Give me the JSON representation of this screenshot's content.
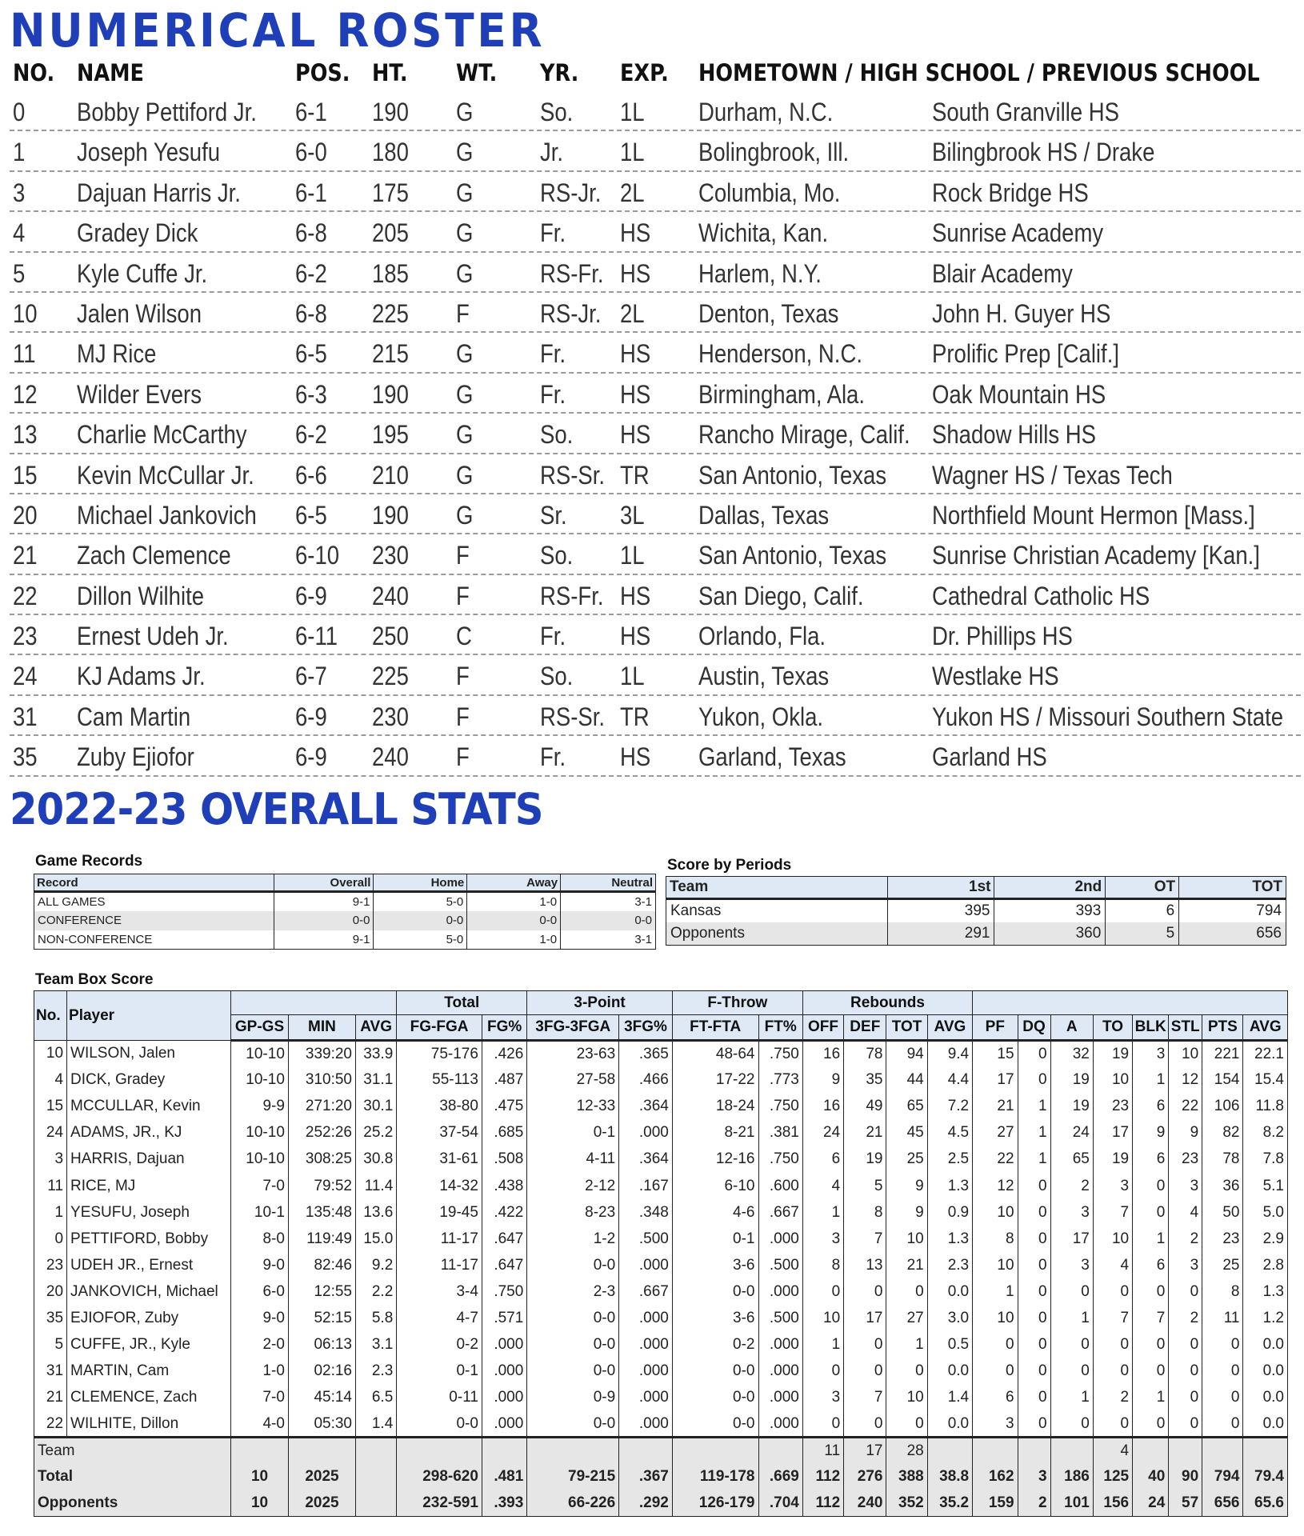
{
  "titles": {
    "roster": "NUMERICAL ROSTER",
    "stats": "2022-23 OVERALL STATS"
  },
  "colors": {
    "heading": "#1f3fb8",
    "header_fill": "#dfe8f5",
    "stripe": "#e6e6e6"
  },
  "roster": {
    "headers": [
      "NO.",
      "NAME",
      "POS.",
      "HT.",
      "WT.",
      "YR.",
      "EXP.",
      "HOMETOWN / HIGH SCHOOL / PREVIOUS SCHOOL"
    ],
    "players": [
      [
        "0",
        "Bobby Pettiford Jr.",
        "6-1",
        "190",
        "G",
        "So.",
        "1L",
        "Durham, N.C.",
        "South Granville HS"
      ],
      [
        "1",
        "Joseph Yesufu",
        "6-0",
        "180",
        "G",
        "Jr.",
        "1L",
        "Bolingbrook, Ill.",
        "Bilingbrook HS / Drake"
      ],
      [
        "3",
        "Dajuan Harris Jr.",
        "6-1",
        "175",
        "G",
        "RS-Jr.",
        "2L",
        "Columbia, Mo.",
        "Rock Bridge HS"
      ],
      [
        "4",
        "Gradey Dick",
        "6-8",
        "205",
        "G",
        "Fr.",
        "HS",
        "Wichita, Kan.",
        "Sunrise Academy"
      ],
      [
        "5",
        "Kyle Cuffe Jr.",
        "6-2",
        "185",
        "G",
        "RS-Fr.",
        "HS",
        "Harlem, N.Y.",
        "Blair Academy"
      ],
      [
        "10",
        "Jalen Wilson",
        "6-8",
        "225",
        "F",
        "RS-Jr.",
        "2L",
        "Denton, Texas",
        "John H. Guyer HS"
      ],
      [
        "11",
        "MJ Rice",
        "6-5",
        "215",
        "G",
        "Fr.",
        "HS",
        "Henderson, N.C.",
        "Prolific Prep [Calif.]"
      ],
      [
        "12",
        "Wilder Evers",
        "6-3",
        "190",
        "G",
        "Fr.",
        "HS",
        "Birmingham, Ala.",
        "Oak Mountain HS"
      ],
      [
        "13",
        "Charlie McCarthy",
        "6-2",
        "195",
        "G",
        "So.",
        "HS",
        "Rancho Mirage, Calif.",
        "Shadow Hills HS"
      ],
      [
        "15",
        "Kevin McCullar Jr.",
        "6-6",
        "210",
        "G",
        "RS-Sr.",
        "TR",
        "San Antonio, Texas",
        "Wagner HS / Texas Tech"
      ],
      [
        "20",
        "Michael Jankovich",
        "6-5",
        "190",
        "G",
        "Sr.",
        "3L",
        "Dallas, Texas",
        "Northfield Mount Hermon [Mass.]"
      ],
      [
        "21",
        "Zach Clemence",
        "6-10",
        "230",
        "F",
        "So.",
        "1L",
        "San Antonio, Texas",
        "Sunrise Christian Academy [Kan.]"
      ],
      [
        "22",
        "Dillon Wilhite",
        "6-9",
        "240",
        "F",
        "RS-Fr.",
        "HS",
        "San Diego, Calif.",
        "Cathedral Catholic HS"
      ],
      [
        "23",
        "Ernest Udeh Jr.",
        "6-11",
        "250",
        "C",
        "Fr.",
        "HS",
        "Orlando, Fla.",
        "Dr. Phillips HS"
      ],
      [
        "24",
        "KJ Adams Jr.",
        "6-7",
        "225",
        "F",
        "So.",
        "1L",
        "Austin, Texas",
        "Westlake HS"
      ],
      [
        "31",
        "Cam Martin",
        "6-9",
        "230",
        "F",
        "RS-Sr.",
        "TR",
        "Yukon, Okla.",
        "Yukon HS / Missouri Southern State"
      ],
      [
        "35",
        "Zuby Ejiofor",
        "6-9",
        "240",
        "F",
        "Fr.",
        "HS",
        "Garland, Texas",
        "Garland HS"
      ]
    ]
  },
  "game_records": {
    "label": "Game Records",
    "headers": [
      "Record",
      "Overall",
      "Home",
      "Away",
      "Neutral"
    ],
    "rows": [
      [
        "ALL GAMES",
        "9-1",
        "5-0",
        "1-0",
        "3-1"
      ],
      [
        "CONFERENCE",
        "0-0",
        "0-0",
        "0-0",
        "0-0"
      ],
      [
        "NON-CONFERENCE",
        "9-1",
        "5-0",
        "1-0",
        "3-1"
      ]
    ]
  },
  "score_by_periods": {
    "label": "Score by Periods",
    "headers": [
      "Team",
      "1st",
      "2nd",
      "OT",
      "TOT"
    ],
    "rows": [
      [
        "Kansas",
        "395",
        "393",
        "6",
        "794"
      ],
      [
        "Opponents",
        "291",
        "360",
        "5",
        "656"
      ]
    ]
  },
  "box_score": {
    "label": "Team Box Score",
    "group_headers": {
      "no": "No.",
      "player": "Player",
      "total": "Total",
      "three": "3-Point",
      "ft": "F-Throw",
      "reb": "Rebounds"
    },
    "col_headers": [
      "GP-GS",
      "MIN",
      "AVG",
      "FG-FGA",
      "FG%",
      "3FG-3FGA",
      "3FG%",
      "FT-FTA",
      "FT%",
      "OFF",
      "DEF",
      "TOT",
      "AVG",
      "PF",
      "DQ",
      "A",
      "TO",
      "BLK",
      "STL",
      "PTS",
      "AVG"
    ],
    "players": [
      [
        "10",
        "WILSON, Jalen",
        "10-10",
        "339:20",
        "33.9",
        "75-176",
        ".426",
        "23-63",
        ".365",
        "48-64",
        ".750",
        "16",
        "78",
        "94",
        "9.4",
        "15",
        "0",
        "32",
        "19",
        "3",
        "10",
        "221",
        "22.1"
      ],
      [
        "4",
        "DICK, Gradey",
        "10-10",
        "310:50",
        "31.1",
        "55-113",
        ".487",
        "27-58",
        ".466",
        "17-22",
        ".773",
        "9",
        "35",
        "44",
        "4.4",
        "17",
        "0",
        "19",
        "10",
        "1",
        "12",
        "154",
        "15.4"
      ],
      [
        "15",
        "MCCULLAR, Kevin",
        "9-9",
        "271:20",
        "30.1",
        "38-80",
        ".475",
        "12-33",
        ".364",
        "18-24",
        ".750",
        "16",
        "49",
        "65",
        "7.2",
        "21",
        "1",
        "19",
        "23",
        "6",
        "22",
        "106",
        "11.8"
      ],
      [
        "24",
        "ADAMS, JR., KJ",
        "10-10",
        "252:26",
        "25.2",
        "37-54",
        ".685",
        "0-1",
        ".000",
        "8-21",
        ".381",
        "24",
        "21",
        "45",
        "4.5",
        "27",
        "1",
        "24",
        "17",
        "9",
        "9",
        "82",
        "8.2"
      ],
      [
        "3",
        "HARRIS, Dajuan",
        "10-10",
        "308:25",
        "30.8",
        "31-61",
        ".508",
        "4-11",
        ".364",
        "12-16",
        ".750",
        "6",
        "19",
        "25",
        "2.5",
        "22",
        "1",
        "65",
        "19",
        "6",
        "23",
        "78",
        "7.8"
      ],
      [
        "11",
        "RICE, MJ",
        "7-0",
        "79:52",
        "11.4",
        "14-32",
        ".438",
        "2-12",
        ".167",
        "6-10",
        ".600",
        "4",
        "5",
        "9",
        "1.3",
        "12",
        "0",
        "2",
        "3",
        "0",
        "3",
        "36",
        "5.1"
      ],
      [
        "1",
        "YESUFU, Joseph",
        "10-1",
        "135:48",
        "13.6",
        "19-45",
        ".422",
        "8-23",
        ".348",
        "4-6",
        ".667",
        "1",
        "8",
        "9",
        "0.9",
        "10",
        "0",
        "3",
        "7",
        "0",
        "4",
        "50",
        "5.0"
      ],
      [
        "0",
        "PETTIFORD, Bobby",
        "8-0",
        "119:49",
        "15.0",
        "11-17",
        ".647",
        "1-2",
        ".500",
        "0-1",
        ".000",
        "3",
        "7",
        "10",
        "1.3",
        "8",
        "0",
        "17",
        "10",
        "1",
        "2",
        "23",
        "2.9"
      ],
      [
        "23",
        "UDEH JR., Ernest",
        "9-0",
        "82:46",
        "9.2",
        "11-17",
        ".647",
        "0-0",
        ".000",
        "3-6",
        ".500",
        "8",
        "13",
        "21",
        "2.3",
        "10",
        "0",
        "3",
        "4",
        "6",
        "3",
        "25",
        "2.8"
      ],
      [
        "20",
        "JANKOVICH, Michael",
        "6-0",
        "12:55",
        "2.2",
        "3-4",
        ".750",
        "2-3",
        ".667",
        "0-0",
        ".000",
        "0",
        "0",
        "0",
        "0.0",
        "1",
        "0",
        "0",
        "0",
        "0",
        "0",
        "8",
        "1.3"
      ],
      [
        "35",
        "EJIOFOR, Zuby",
        "9-0",
        "52:15",
        "5.8",
        "4-7",
        ".571",
        "0-0",
        ".000",
        "3-6",
        ".500",
        "10",
        "17",
        "27",
        "3.0",
        "10",
        "0",
        "1",
        "7",
        "7",
        "2",
        "11",
        "1.2"
      ],
      [
        "5",
        "CUFFE, JR., Kyle",
        "2-0",
        "06:13",
        "3.1",
        "0-2",
        ".000",
        "0-0",
        ".000",
        "0-2",
        ".000",
        "1",
        "0",
        "1",
        "0.5",
        "0",
        "0",
        "0",
        "0",
        "0",
        "0",
        "0",
        "0.0"
      ],
      [
        "31",
        "MARTIN, Cam",
        "1-0",
        "02:16",
        "2.3",
        "0-1",
        ".000",
        "0-0",
        ".000",
        "0-0",
        ".000",
        "0",
        "0",
        "0",
        "0.0",
        "0",
        "0",
        "0",
        "0",
        "0",
        "0",
        "0",
        "0.0"
      ],
      [
        "21",
        "CLEMENCE, Zach",
        "7-0",
        "45:14",
        "6.5",
        "0-11",
        ".000",
        "0-9",
        ".000",
        "0-0",
        ".000",
        "3",
        "7",
        "10",
        "1.4",
        "6",
        "0",
        "1",
        "2",
        "1",
        "0",
        "0",
        "0.0"
      ],
      [
        "22",
        "WILHITE, Dillon",
        "4-0",
        "05:30",
        "1.4",
        "0-0",
        ".000",
        "0-0",
        ".000",
        "0-0",
        ".000",
        "0",
        "0",
        "0",
        "0.0",
        "3",
        "0",
        "0",
        "0",
        "0",
        "0",
        "0",
        "0.0"
      ]
    ],
    "team_row": {
      "label": "Team",
      "off": "11",
      "def": "17",
      "tot": "28",
      "to": "4"
    },
    "totals": [
      [
        "Total",
        "10",
        "2025",
        "",
        "298-620",
        ".481",
        "79-215",
        ".367",
        "119-178",
        ".669",
        "112",
        "276",
        "388",
        "38.8",
        "162",
        "3",
        "186",
        "125",
        "40",
        "90",
        "794",
        "79.4"
      ],
      [
        "Opponents",
        "10",
        "2025",
        "",
        "232-591",
        ".393",
        "66-226",
        ".292",
        "126-179",
        ".704",
        "112",
        "240",
        "352",
        "35.2",
        "159",
        "2",
        "101",
        "156",
        "24",
        "57",
        "656",
        "65.6"
      ]
    ]
  }
}
